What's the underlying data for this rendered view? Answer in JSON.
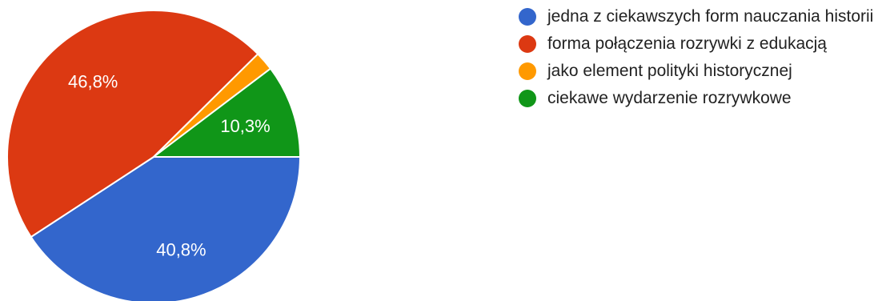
{
  "chart_data": {
    "type": "pie",
    "slices": [
      {
        "name": "jedna z ciekawszych form nauczania historii",
        "value": 40.8,
        "label": "40,8%",
        "color": "#3366cc"
      },
      {
        "name": "forma połączenia rozrywki z edukacją",
        "value": 46.8,
        "label": "46,8%",
        "color": "#dc3912"
      },
      {
        "name": "jako element polityki historycznej",
        "value": 2.1,
        "label": "",
        "color": "#ff9900"
      },
      {
        "name": "ciekawe wydarzenie rozrywkowe",
        "value": 10.3,
        "label": "10,3%",
        "color": "#109618"
      }
    ],
    "legend_position": "right"
  },
  "legend": {
    "items": [
      {
        "text": "jedna z ciekawszych form nauczania historii",
        "color": "#3366cc"
      },
      {
        "text": "forma połączenia rozrywki z edukacją",
        "color": "#dc3912"
      },
      {
        "text": "jako element polityki historycznej",
        "color": "#ff9900"
      },
      {
        "text": "ciekawe wydarzenie rozrywkowe",
        "color": "#109618"
      }
    ]
  }
}
